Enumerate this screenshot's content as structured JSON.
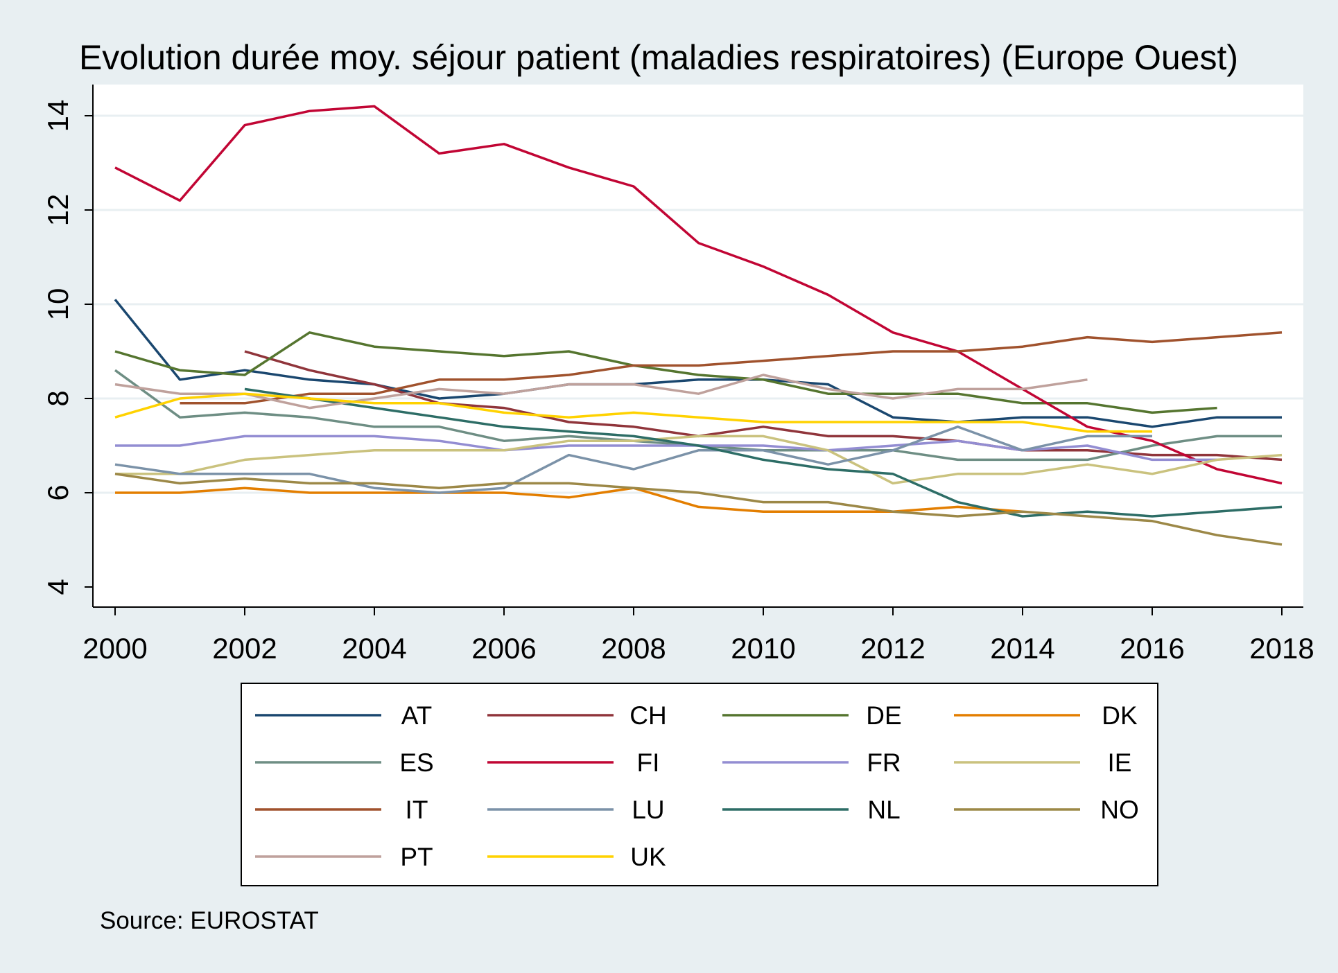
{
  "chart_data": {
    "type": "line",
    "title": "Evolution durée moy. séjour patient (maladies respiratoires) (Europe Ouest)",
    "source": "Source: EUROSTAT",
    "xlabel": "",
    "ylabel": "",
    "xlim": [
      2000,
      2018
    ],
    "ylim": [
      4,
      14
    ],
    "x_ticks": [
      "2000",
      "2002",
      "2004",
      "2006",
      "2008",
      "2010",
      "2012",
      "2014",
      "2016",
      "2018"
    ],
    "y_ticks": [
      "4",
      "6",
      "8",
      "10",
      "12",
      "14"
    ],
    "grid": true,
    "legend_position": "bottom",
    "x": [
      2000,
      2001,
      2002,
      2003,
      2004,
      2005,
      2006,
      2007,
      2008,
      2009,
      2010,
      2011,
      2012,
      2013,
      2014,
      2015,
      2016,
      2017,
      2018
    ],
    "series": [
      {
        "name": "AT",
        "color": "#1a476f",
        "values": [
          10.1,
          8.4,
          8.6,
          8.4,
          8.3,
          8.0,
          8.1,
          8.3,
          8.3,
          8.4,
          8.4,
          8.3,
          7.6,
          7.5,
          7.6,
          7.6,
          7.4,
          7.6,
          7.6
        ]
      },
      {
        "name": "CH",
        "color": "#90353b",
        "values": [
          null,
          null,
          9.0,
          8.6,
          8.3,
          7.9,
          7.8,
          7.5,
          7.4,
          7.2,
          7.4,
          7.2,
          7.2,
          7.1,
          6.9,
          6.9,
          6.8,
          6.8,
          6.7
        ]
      },
      {
        "name": "DE",
        "color": "#55752f",
        "values": [
          9.0,
          8.6,
          8.5,
          9.4,
          9.1,
          9.0,
          8.9,
          9.0,
          8.7,
          8.5,
          8.4,
          8.1,
          8.1,
          8.1,
          7.9,
          7.9,
          7.7,
          7.8,
          null
        ]
      },
      {
        "name": "DK",
        "color": "#e37e00",
        "values": [
          6.0,
          6.0,
          6.1,
          6.0,
          6.0,
          6.0,
          6.0,
          5.9,
          6.1,
          5.7,
          5.6,
          5.6,
          5.6,
          5.7,
          5.6,
          null,
          null,
          null,
          null
        ]
      },
      {
        "name": "ES",
        "color": "#6e8e84",
        "values": [
          8.6,
          7.6,
          7.7,
          7.6,
          7.4,
          7.4,
          7.1,
          7.2,
          7.1,
          7.0,
          6.9,
          6.9,
          6.9,
          6.7,
          6.7,
          6.7,
          7.0,
          7.2,
          7.2
        ]
      },
      {
        "name": "FI",
        "color": "#c10534",
        "values": [
          12.9,
          12.2,
          13.8,
          14.1,
          14.2,
          13.2,
          13.4,
          12.9,
          12.5,
          11.3,
          10.8,
          10.2,
          9.4,
          9.0,
          8.2,
          7.4,
          7.1,
          6.5,
          6.2
        ]
      },
      {
        "name": "FR",
        "color": "#938dd2",
        "values": [
          7.0,
          7.0,
          7.2,
          7.2,
          7.2,
          7.1,
          6.9,
          7.0,
          7.0,
          7.0,
          7.0,
          6.9,
          7.0,
          7.1,
          6.9,
          7.0,
          6.7,
          6.7,
          null
        ]
      },
      {
        "name": "IE",
        "color": "#cac27e",
        "values": [
          6.4,
          6.4,
          6.7,
          6.8,
          6.9,
          6.9,
          6.9,
          7.1,
          7.1,
          7.2,
          7.2,
          6.9,
          6.2,
          6.4,
          6.4,
          6.6,
          6.4,
          6.7,
          6.8
        ]
      },
      {
        "name": "IT",
        "color": "#a0522d",
        "values": [
          null,
          7.9,
          7.9,
          8.1,
          8.1,
          8.4,
          8.4,
          8.5,
          8.7,
          8.7,
          8.8,
          8.9,
          9.0,
          9.0,
          9.1,
          9.3,
          9.2,
          9.3,
          9.4
        ]
      },
      {
        "name": "LU",
        "color": "#7b92a8",
        "values": [
          6.6,
          6.4,
          6.4,
          6.4,
          6.1,
          6.0,
          6.1,
          6.8,
          6.5,
          6.9,
          6.9,
          6.6,
          6.9,
          7.4,
          6.9,
          7.2,
          7.2,
          null,
          null
        ]
      },
      {
        "name": "NL",
        "color": "#2d6d66",
        "values": [
          null,
          null,
          8.2,
          8.0,
          7.8,
          7.6,
          7.4,
          7.3,
          7.2,
          7.0,
          6.7,
          6.5,
          6.4,
          5.8,
          5.5,
          5.6,
          5.5,
          5.6,
          5.7
        ]
      },
      {
        "name": "NO",
        "color": "#9c8847",
        "values": [
          6.4,
          6.2,
          6.3,
          6.2,
          6.2,
          6.1,
          6.2,
          6.2,
          6.1,
          6.0,
          5.8,
          5.8,
          5.6,
          5.5,
          5.6,
          5.5,
          5.4,
          5.1,
          4.9
        ]
      },
      {
        "name": "PT",
        "color": "#bfa19c",
        "values": [
          8.3,
          8.1,
          8.1,
          7.8,
          8.0,
          8.2,
          8.1,
          8.3,
          8.3,
          8.1,
          8.5,
          8.2,
          8.0,
          8.2,
          8.2,
          8.4,
          null,
          null,
          null
        ]
      },
      {
        "name": "UK",
        "color": "#ffd200",
        "values": [
          7.6,
          8.0,
          8.1,
          8.0,
          7.9,
          7.9,
          7.7,
          7.6,
          7.7,
          7.6,
          7.5,
          7.5,
          7.5,
          7.5,
          7.5,
          7.3,
          7.3,
          null,
          null
        ]
      }
    ]
  }
}
